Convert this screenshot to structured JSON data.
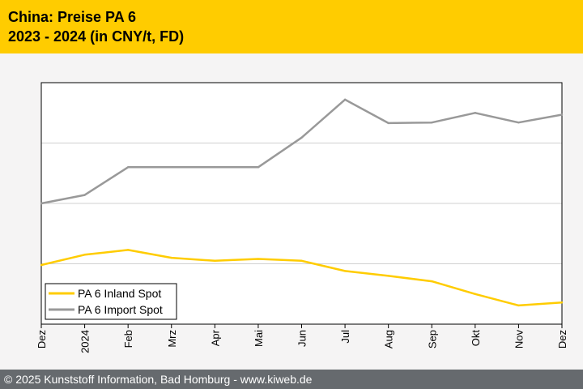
{
  "header": {
    "title_line1": "China: Preise PA 6",
    "title_line2": "2023 - 2024 (in CNY/t, FD)"
  },
  "footer": {
    "text": "© 2025 Kunststoff Information, Bad Homburg - www.kiweb.de"
  },
  "colors": {
    "header_bg": "#ffcc00",
    "footer_bg": "#666a6e",
    "inland": "#ffcc00",
    "import": "#999999"
  },
  "chart_data": {
    "type": "line",
    "title": "China: Preise PA 6",
    "subtitle": "2023 - 2024 (in CNY/t, FD)",
    "categories": [
      "Dez",
      "2024",
      "Feb",
      "Mrz",
      "Apr",
      "Mai",
      "Jun",
      "Jul",
      "Aug",
      "Sep",
      "Okt",
      "Nov",
      "Dez"
    ],
    "y_tick_labels_shown": false,
    "ylim": [
      0,
      4
    ],
    "grid": "horizontal",
    "legend_position": "bottom-left",
    "series": [
      {
        "name": "PA 6 Inland Spot",
        "color": "#ffcc00",
        "values": [
          0.98,
          1.15,
          1.23,
          1.1,
          1.05,
          1.08,
          1.05,
          0.88,
          0.8,
          0.71,
          0.5,
          0.31,
          0.36
        ]
      },
      {
        "name": "PA 6 Import Spot",
        "color": "#999999",
        "values": [
          2.0,
          2.14,
          2.6,
          2.6,
          2.6,
          2.6,
          3.09,
          3.72,
          3.33,
          3.34,
          3.5,
          3.34,
          3.47
        ]
      }
    ]
  }
}
